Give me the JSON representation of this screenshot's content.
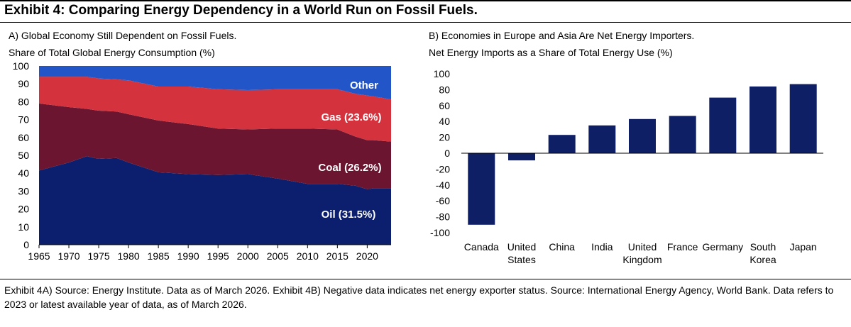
{
  "header": {
    "title": "Exhibit 4: Comparing Energy Dependency in a World Run on Fossil Fuels."
  },
  "colors": {
    "oil": "#0b1f6e",
    "coal": "#6b1530",
    "gas": "#d4333e",
    "other": "#2256c8",
    "bar": "#0e1f66",
    "area_label": "#ffffff"
  },
  "chart_data": [
    {
      "id": "panel-a",
      "type": "area",
      "title": "A) Global Economy Still Dependent on Fossil Fuels.",
      "subtitle": "Share of Total Global Energy Consumption (%)",
      "xlabel": "",
      "ylabel": "Share of Total Global Energy Consumption (%)",
      "xlim": [
        1965,
        2024
      ],
      "ylim": [
        0,
        100
      ],
      "x_ticks": [
        1965,
        1970,
        1975,
        1980,
        1985,
        1990,
        1995,
        2000,
        2005,
        2010,
        2015,
        2020
      ],
      "y_ticks": [
        0,
        10,
        20,
        30,
        40,
        50,
        60,
        70,
        80,
        90,
        100
      ],
      "stacked": true,
      "x": [
        1965,
        1970,
        1973,
        1975,
        1978,
        1980,
        1985,
        1990,
        1995,
        2000,
        2005,
        2010,
        2015,
        2018,
        2020,
        2021,
        2024
      ],
      "series": [
        {
          "name": "Oil",
          "label": "Oil (31.5%)",
          "values": [
            41.5,
            46,
            49.5,
            48,
            48.5,
            46,
            40.5,
            39.5,
            39,
            39.5,
            37,
            34,
            34,
            33,
            31,
            31.5,
            31.5
          ]
        },
        {
          "name": "Coal",
          "label": "Coal (26.2%)",
          "values": [
            37.5,
            31,
            26.5,
            27,
            26,
            27,
            29,
            28,
            26,
            25,
            28,
            31,
            30.5,
            27.5,
            27.5,
            27,
            26.2
          ]
        },
        {
          "name": "Gas",
          "label": "Gas (23.6%)",
          "values": [
            15,
            17,
            18,
            18,
            18,
            19,
            19,
            21,
            22,
            22,
            22,
            22,
            22.5,
            24,
            25,
            24.5,
            23.6
          ]
        },
        {
          "name": "Other",
          "label": "Other",
          "values": [
            6,
            6,
            6,
            7,
            7.5,
            8,
            11.5,
            11.5,
            13,
            13.5,
            13,
            13,
            13,
            15.5,
            16.5,
            17,
            18.7
          ]
        }
      ]
    },
    {
      "id": "panel-b",
      "type": "bar",
      "title": "B) Economies in Europe and Asia Are Net Energy Importers.",
      "subtitle": "Net Energy Imports as a Share of Total Energy Use (%)",
      "xlabel": "",
      "ylabel": "Net Energy Imports as a Share of Total Energy Use (%)",
      "ylim": [
        -100,
        100
      ],
      "y_ticks": [
        100,
        80,
        60,
        40,
        20,
        0,
        -20,
        -40,
        -60,
        -80,
        -100
      ],
      "categories": [
        "Canada",
        "United States",
        "China",
        "India",
        "United Kingdom",
        "France",
        "Germany",
        "South Korea",
        "Japan"
      ],
      "category_lines": [
        [
          "Canada"
        ],
        [
          "United",
          "States"
        ],
        [
          "China"
        ],
        [
          "India"
        ],
        [
          "United",
          "Kingdom"
        ],
        [
          "France"
        ],
        [
          "Germany"
        ],
        [
          "South",
          "Korea"
        ],
        [
          "Japan"
        ]
      ],
      "values": [
        -90,
        -9,
        23,
        35,
        43,
        47,
        70,
        84,
        87
      ]
    }
  ],
  "footer": {
    "source": "Exhibit 4A) Source: Energy Institute. Data as of March 2026. Exhibit 4B) Negative data indicates net energy exporter status. Source: International Energy Agency, World Bank. Data refers to 2023 or latest available year of data, as of March 2026."
  }
}
